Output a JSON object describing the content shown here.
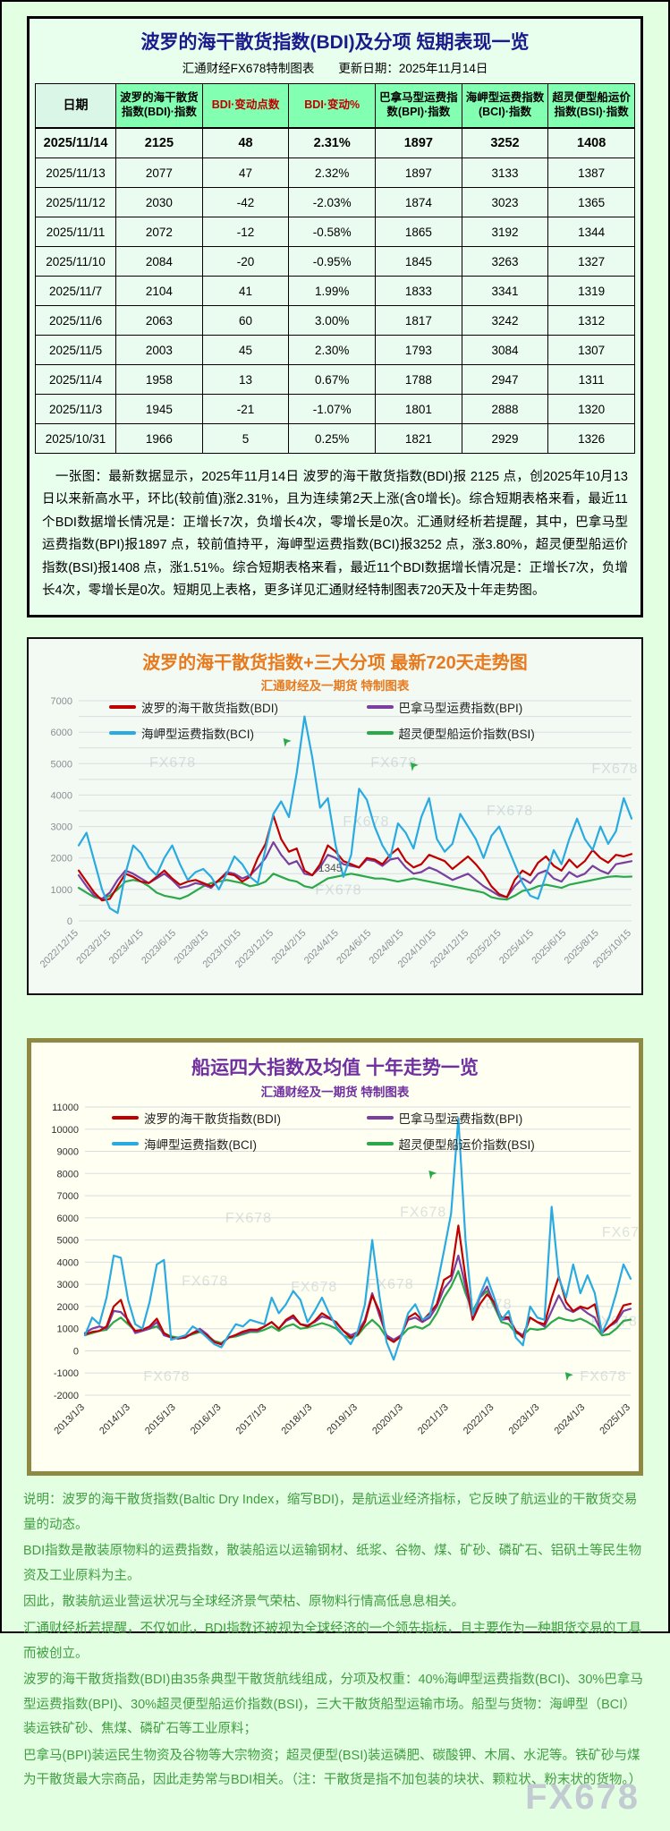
{
  "page": {
    "watermark": "FX678"
  },
  "table_section": {
    "title": "波罗的海干散货指数(BDI)及分项  短期表现一览",
    "subtitle": "汇通财经FX678特制图表　　更新日期：2025年11月14日",
    "headers": [
      "日期",
      "波罗的海干散货指数(BDI)·指数",
      "BDI·变动点数",
      "BDI·变动%",
      "巴拿马型运费指数(BPI)·指数",
      "海岬型运费指数(BCI)·指数",
      "超灵便型船运价指数(BSI)·指数"
    ],
    "rows": [
      [
        "2025/11/14",
        "2125",
        "48",
        "2.31%",
        "1897",
        "3252",
        "1408"
      ],
      [
        "2025/11/13",
        "2077",
        "47",
        "2.32%",
        "1897",
        "3133",
        "1387"
      ],
      [
        "2025/11/12",
        "2030",
        "-42",
        "-2.03%",
        "1874",
        "3023",
        "1365"
      ],
      [
        "2025/11/11",
        "2072",
        "-12",
        "-0.58%",
        "1865",
        "3192",
        "1344"
      ],
      [
        "2025/11/10",
        "2084",
        "-20",
        "-0.95%",
        "1845",
        "3263",
        "1327"
      ],
      [
        "2025/11/7",
        "2104",
        "41",
        "1.99%",
        "1833",
        "3341",
        "1319"
      ],
      [
        "2025/11/6",
        "2063",
        "60",
        "3.00%",
        "1817",
        "3242",
        "1312"
      ],
      [
        "2025/11/5",
        "2003",
        "45",
        "2.30%",
        "1793",
        "3084",
        "1307"
      ],
      [
        "2025/11/4",
        "1958",
        "13",
        "0.67%",
        "1788",
        "2947",
        "1311"
      ],
      [
        "2025/11/3",
        "1945",
        "-21",
        "-1.07%",
        "1801",
        "2888",
        "1320"
      ],
      [
        "2025/10/31",
        "1966",
        "5",
        "0.25%",
        "1821",
        "2929",
        "1326"
      ]
    ],
    "note": "　一张图：最新数据显示，2025年11月14日 波罗的海干散货指数(BDI)报 2125 点，创2025年10月13日以来新高水平，环比(较前值)涨2.31%，且为连续第2天上涨(含0增长)。综合短期表格来看，最近11个BDI数据增长情况是：正增长7次，负增长4次，零增长是0次。汇通财经析若提醒，其中，巴拿马型运费指数(BPI)报1897 点，较前值持平，海岬型运费指数(BCI)报3252 点，涨3.80%，超灵便型船运价指数(BSI)报1408 点，涨1.51%。综合短期表格来看，最近11个BDI数据增长情况是：正增长7次，负增长4次，零增长是0次。短期见上表格，更多详见汇通财经特制图表720天及十年走势图。"
  },
  "footer": {
    "lines": [
      "说明：波罗的海干散货指数(Baltic Dry Index，缩写BDI)，是航运业经济指标，它反映了航运业的干散货交易量的动态。",
      "BDI指数是散装原物料的运费指数，散装船运以运输钢材、纸浆、谷物、煤、矿砂、磷矿石、铝矾土等民生物资及工业原料为主。",
      "因此，散装航运业营运状况与全球经济景气荣枯、原物料行情高低息息相关。",
      "汇通财经析若提醒，不仅如此，BDI指数还被视为全球经济的一个领先指标，且主要作为一种期货交易的工具而被创立。",
      "波罗的海干散货指数(BDI)由35条典型干散货航线组成，分项及权重：40%海岬型运费指数(BCI)、30%巴拿马型运费指数(BPI)、30%超灵便型船运价指数(BSI)，三大干散货船型运输市场。船型与货物：海岬型（BCI）装运铁矿砂、焦煤、磷矿石等工业原料；",
      "巴拿马(BPI)装运民生物资及谷物等大宗物资；超灵便型(BSI)装运磷肥、碳酸钾、木屑、水泥等。铁矿砂与煤为干散货最大宗商品，因此走势常与BDI相关。（注：干散货是指不加包装的块状、颗粒状、粉末状的货物。）"
    ]
  },
  "chart_data": [
    {
      "type": "line",
      "title": "波罗的海干散货指数+三大分项  最新720天走势图",
      "subtitle": "汇通财经及一期货  特制图表",
      "ylim": [
        0,
        7000
      ],
      "label_step": 1000,
      "grid_step": 500,
      "legend_position": "top",
      "grid": true,
      "x": [
        "2022/12/15",
        "2023/2/15",
        "2023/4/15",
        "2023/6/15",
        "2023/8/15",
        "2023/10/15",
        "2023/12/15",
        "2024/2/15",
        "2024/4/15",
        "2024/6/15",
        "2024/8/15",
        "2024/10/15",
        "2024/12/15",
        "2025/2/15",
        "2025/4/15",
        "2025/6/15",
        "2025/8/15",
        "2025/10/15"
      ],
      "annotations": [
        {
          "text": "1345",
          "xf": 0.455,
          "value": 1560
        }
      ],
      "watermarks": [
        {
          "xf": 0.17,
          "yf": 0.3
        },
        {
          "xf": 0.57,
          "yf": 0.3
        },
        {
          "xf": 0.97,
          "yf": 0.33
        },
        {
          "xf": 0.52,
          "yf": 0.57
        },
        {
          "xf": 0.47,
          "yf": 0.88
        },
        {
          "xf": 0.78,
          "yf": 0.52
        }
      ],
      "cursors": [
        {
          "xf": 0.6,
          "yf": 0.28
        },
        {
          "xf": 0.37,
          "yf": 0.17
        }
      ],
      "series": [
        {
          "name": "波罗的海干散货指数(BDI)",
          "color": "#c00000",
          "z": 3,
          "values": [
            1600,
            1250,
            900,
            650,
            700,
            1100,
            1500,
            1400,
            1250,
            1200,
            1400,
            1600,
            1350,
            1150,
            1250,
            1300,
            1200,
            1100,
            1300,
            1500,
            1450,
            1250,
            1400,
            2000,
            2450,
            3350,
            2600,
            2200,
            2300,
            1600,
            1450,
            1800,
            2400,
            2200,
            1900,
            1800,
            1700,
            2000,
            1950,
            1800,
            2100,
            2300,
            1900,
            1700,
            1800,
            2100,
            2000,
            1900,
            1650,
            1850,
            2050,
            1800,
            1500,
            1100,
            850,
            750,
            1300,
            1600,
            1450,
            1850,
            2050,
            1750,
            1600,
            1950,
            1700,
            1900,
            2250,
            2000,
            1850,
            2100,
            2050,
            2125
          ]
        },
        {
          "name": "巴拿马型运费指数(BPI)",
          "color": "#7b3fa0",
          "z": 2,
          "values": [
            1450,
            1100,
            800,
            700,
            900,
            1300,
            1600,
            1500,
            1350,
            1200,
            1350,
            1500,
            1300,
            1050,
            1100,
            1200,
            1150,
            1050,
            1300,
            1550,
            1500,
            1350,
            1450,
            1700,
            2000,
            2500,
            2100,
            1800,
            1900,
            1500,
            1450,
            1700,
            2100,
            2000,
            1800,
            1750,
            1700,
            1950,
            1900,
            1750,
            1950,
            2000,
            1700,
            1500,
            1550,
            1700,
            1600,
            1450,
            1300,
            1400,
            1500,
            1300,
            1100,
            950,
            800,
            750,
            1100,
            1350,
            1200,
            1500,
            1600,
            1350,
            1250,
            1550,
            1400,
            1500,
            1750,
            1600,
            1500,
            1800,
            1850,
            1897
          ]
        },
        {
          "name": "海岬型运费指数(BCI)",
          "color": "#29abe2",
          "z": 4,
          "values": [
            2400,
            2800,
            1900,
            1000,
            400,
            250,
            1500,
            2400,
            2150,
            1700,
            1450,
            2000,
            2400,
            1800,
            1300,
            1550,
            1650,
            1400,
            1000,
            1500,
            2050,
            1800,
            1400,
            1200,
            2300,
            3400,
            3800,
            3300,
            4700,
            6500,
            5200,
            3600,
            3900,
            2400,
            1400,
            2100,
            4200,
            3850,
            3000,
            2400,
            2000,
            3100,
            2800,
            2300,
            3300,
            3900,
            2600,
            2200,
            2450,
            3400,
            3000,
            2600,
            2000,
            2700,
            3000,
            2400,
            1800,
            1200,
            800,
            700,
            1450,
            2250,
            1800,
            2600,
            3250,
            2600,
            2250,
            3000,
            2450,
            2850,
            3900,
            3252
          ]
        },
        {
          "name": "超灵便型船运价指数(BSI)",
          "color": "#2aa84a",
          "z": 1,
          "values": [
            1050,
            900,
            750,
            700,
            800,
            1000,
            1250,
            1300,
            1250,
            1100,
            900,
            800,
            750,
            700,
            800,
            950,
            1100,
            1200,
            1250,
            1300,
            1250,
            1200,
            1100,
            1150,
            1250,
            1500,
            1400,
            1300,
            1250,
            1100,
            1050,
            1200,
            1350,
            1400,
            1450,
            1500,
            1450,
            1400,
            1350,
            1345,
            1300,
            1250,
            1300,
            1350,
            1300,
            1250,
            1200,
            1150,
            1100,
            1050,
            1000,
            950,
            900,
            750,
            700,
            680,
            800,
            950,
            1000,
            1100,
            1150,
            1100,
            1050,
            1150,
            1200,
            1250,
            1300,
            1350,
            1400,
            1420,
            1400,
            1408
          ]
        }
      ]
    },
    {
      "type": "line",
      "title": "船运四大指数及均值 十年走势一览",
      "subtitle": "汇通财经及一期货 特制图表",
      "ylim": [
        -2000,
        11000
      ],
      "label_step": 1000,
      "grid_step": 1000,
      "legend_position": "top",
      "grid": true,
      "x": [
        "2013/1/3",
        "2014/1/3",
        "2015/1/3",
        "2016/1/3",
        "2017/1/3",
        "2018/1/3",
        "2019/1/3",
        "2020/1/3",
        "2021/1/3",
        "2022/1/3",
        "2023/1/3",
        "2024/1/3",
        "2025/1/3"
      ],
      "annotations": [],
      "watermarks": [
        {
          "xf": 0.3,
          "yf": 0.4
        },
        {
          "xf": 0.62,
          "yf": 0.38
        },
        {
          "xf": 0.99,
          "yf": 0.45
        },
        {
          "xf": 0.22,
          "yf": 0.62
        },
        {
          "xf": 0.42,
          "yf": 0.64
        },
        {
          "xf": 0.56,
          "yf": 0.63
        },
        {
          "xf": 0.74,
          "yf": 0.7
        },
        {
          "xf": 0.97,
          "yf": 0.76
        },
        {
          "xf": 0.15,
          "yf": 0.95
        },
        {
          "xf": 0.95,
          "yf": 0.95
        }
      ],
      "cursors": [
        {
          "xf": 0.63,
          "yf": 0.22
        },
        {
          "xf": 0.88,
          "yf": 0.92
        }
      ],
      "series": [
        {
          "name": "波罗的海干散货指数(BDI)",
          "color": "#c00000",
          "z": 3,
          "values": [
            750,
            850,
            900,
            1100,
            2000,
            2300,
            1300,
            900,
            950,
            1100,
            1450,
            800,
            600,
            560,
            620,
            800,
            900,
            700,
            400,
            290,
            600,
            720,
            870,
            960,
            950,
            1100,
            1300,
            1000,
            1400,
            1600,
            1200,
            1100,
            1350,
            1700,
            1500,
            1270,
            900,
            600,
            750,
            1300,
            2500,
            1800,
            600,
            400,
            650,
            1500,
            1700,
            1360,
            1700,
            2100,
            3200,
            3400,
            5650,
            3300,
            1400,
            2100,
            2550,
            2200,
            1500,
            1520,
            900,
            600,
            1500,
            1300,
            1200,
            2400,
            3350,
            2200,
            1800,
            2000,
            1900,
            2100,
            800,
            1100,
            1400,
            2050,
            2125
          ]
        },
        {
          "name": "巴拿马型运费指数(BPI)",
          "color": "#7b3fa0",
          "z": 2,
          "values": [
            800,
            1000,
            1100,
            1000,
            1800,
            1750,
            1400,
            800,
            900,
            1000,
            1300,
            700,
            600,
            550,
            600,
            800,
            1000,
            750,
            400,
            310,
            600,
            700,
            800,
            900,
            900,
            1100,
            1300,
            1000,
            1350,
            1500,
            1200,
            1150,
            1300,
            1550,
            1450,
            1300,
            900,
            700,
            850,
            1400,
            2600,
            1600,
            700,
            500,
            700,
            1400,
            1500,
            1300,
            1500,
            2000,
            2800,
            3200,
            4300,
            2900,
            1500,
            2400,
            2900,
            2100,
            1400,
            1450,
            900,
            700,
            1500,
            1300,
            1100,
            1800,
            2500,
            1900,
            1750,
            1950,
            1700,
            1500,
            800,
            1100,
            1300,
            1800,
            1897
          ]
        },
        {
          "name": "海岬型运费指数(BCI)",
          "color": "#29abe2",
          "z": 4,
          "values": [
            700,
            1500,
            1200,
            2400,
            4300,
            4200,
            2300,
            1200,
            1000,
            2200,
            3900,
            4100,
            500,
            600,
            700,
            1100,
            900,
            600,
            300,
            160,
            700,
            1200,
            1100,
            1400,
            1300,
            1200,
            2400,
            1700,
            2100,
            2700,
            2300,
            1300,
            1800,
            2400,
            1700,
            1100,
            700,
            300,
            900,
            2100,
            5000,
            2500,
            400,
            -400,
            600,
            1700,
            2100,
            1400,
            1600,
            2900,
            4500,
            6200,
            10485,
            5000,
            1600,
            2500,
            3300,
            2400,
            1400,
            1800,
            600,
            250,
            2000,
            1500,
            1400,
            6500,
            3300,
            2400,
            3900,
            2600,
            3400,
            2600,
            800,
            1500,
            2600,
            3900,
            3252
          ]
        },
        {
          "name": "超灵便型船运价指数(BSI)",
          "color": "#2aa84a",
          "z": 1,
          "values": [
            700,
            800,
            900,
            950,
            1300,
            1500,
            1200,
            900,
            950,
            1000,
            1100,
            800,
            650,
            600,
            650,
            750,
            850,
            700,
            450,
            350,
            600,
            650,
            750,
            850,
            850,
            950,
            1100,
            900,
            1100,
            1200,
            1000,
            1050,
            1150,
            1250,
            1150,
            1000,
            700,
            550,
            700,
            1100,
            1400,
            1100,
            600,
            450,
            650,
            1000,
            1100,
            1000,
            1200,
            1700,
            2400,
            2900,
            3600,
            2600,
            1800,
            2400,
            2700,
            2000,
            1300,
            1200,
            800,
            700,
            1000,
            950,
            1000,
            1300,
            1500,
            1400,
            1350,
            1450,
            1300,
            1100,
            700,
            750,
            1000,
            1350,
            1408
          ]
        }
      ]
    }
  ]
}
